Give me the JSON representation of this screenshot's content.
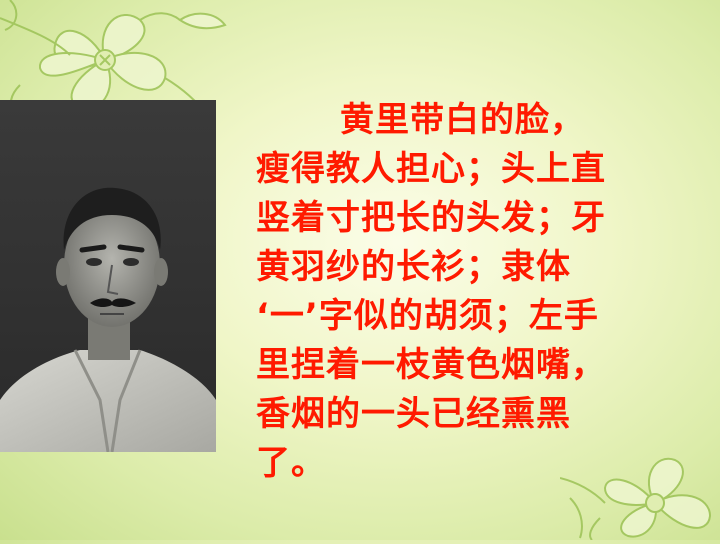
{
  "slide": {
    "passage_lines": [
      "黄里带白的脸，",
      "瘦得教人担心；头上直",
      "竖着寸把长的头发；牙",
      "黄羽纱的长衫；隶体",
      "‘一’字似的胡须；左手",
      "里捏着一枝黄色烟嘴，",
      "香烟的一头已经熏黑",
      "了。"
    ],
    "colors": {
      "text": "#ff1a00",
      "background": "#e8f2b8",
      "flower_stroke": "#8fb84a"
    },
    "icons": {
      "top_left": "flower-outline-icon",
      "bottom_right": "flower-outline-icon",
      "portrait": "portrait-photo"
    }
  }
}
